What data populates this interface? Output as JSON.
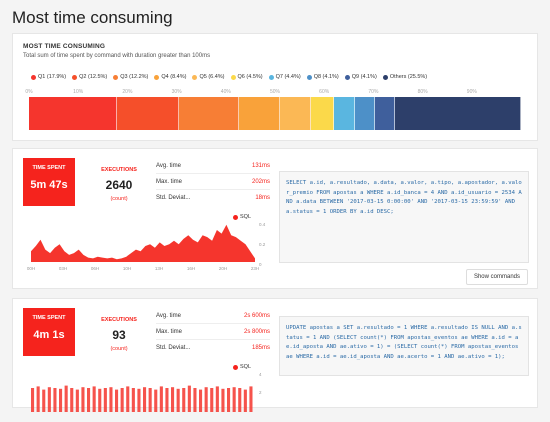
{
  "page": {
    "title": "Most time consuming"
  },
  "summary": {
    "heading": "MOST TIME CONSUMING",
    "subtitle": "Total sum of time spent by command with duration greater than 100ms",
    "legend": [
      {
        "label": "Q1 (17.9%)",
        "color": "#f5352d"
      },
      {
        "label": "Q2 (12.5%)",
        "color": "#f54f2a"
      },
      {
        "label": "Q3 (12.2%)",
        "color": "#f77e35"
      },
      {
        "label": "Q4 (8.4%)",
        "color": "#f9a23a"
      },
      {
        "label": "Q5 (6.4%)",
        "color": "#fbb855"
      },
      {
        "label": "Q6 (4.5%)",
        "color": "#fbd94a"
      },
      {
        "label": "Q7 (4.4%)",
        "color": "#5ab6e0"
      },
      {
        "label": "Q8 (4.1%)",
        "color": "#4d90c8"
      },
      {
        "label": "Q9 (4.1%)",
        "color": "#3f5f9c"
      },
      {
        "label": "Others (25.5%)",
        "color": "#2d3f6a"
      }
    ],
    "shares": [
      17.9,
      12.5,
      12.2,
      8.4,
      6.4,
      4.5,
      4.4,
      4.1,
      4.1,
      25.5
    ],
    "axis_ticks": [
      "0%",
      "10%",
      "20%",
      "30%",
      "40%",
      "50%",
      "60%",
      "70%",
      "80%",
      "90%"
    ]
  },
  "queries": [
    {
      "time_spent_label": "TIME SPENT",
      "time_spent": "5m 47s",
      "executions_label": "EXECUTIONS",
      "executions": "2640",
      "executions_unit": "(count)",
      "stats": [
        {
          "label": "Avg. time",
          "value": "131ms"
        },
        {
          "label": "Max. time",
          "value": "202ms"
        },
        {
          "label": "Std. Deviat...",
          "value": "18ms"
        }
      ],
      "legend": "SQL",
      "x_ticks": [
        "00H",
        "03H",
        "06H",
        "10H",
        "13H",
        "16H",
        "20H",
        "23H"
      ],
      "y_ticks": [
        "0.4",
        "0.2",
        "0"
      ],
      "sql": "SELECT a.id, a.resultado, a.data, a.valor, a.tipo, a.apostador, a.valor_premio FROM apostas a WHERE a.id_banca = 4 AND a.id_usuario = 2534 AND a.data BETWEEN '2017-03-15 0:00:00' AND '2017-03-15 23:59:59' AND a.status = 1 ORDER BY a.id DESC;",
      "show_button": "Show commands",
      "chart_data": {
        "type": "area",
        "x": [
          0,
          1,
          2,
          3,
          4,
          5,
          6,
          7,
          8,
          9,
          10,
          11,
          12,
          13,
          14,
          15,
          16,
          17,
          18,
          19,
          20,
          21,
          22,
          23,
          24,
          25,
          26,
          27,
          28,
          29,
          30,
          31,
          32,
          33,
          34,
          35,
          36,
          37,
          38,
          39,
          40,
          41,
          42,
          43,
          44,
          45,
          46,
          47
        ],
        "values": [
          0.12,
          0.18,
          0.25,
          0.14,
          0.1,
          0.16,
          0.2,
          0.12,
          0.08,
          0.1,
          0.14,
          0.08,
          0.05,
          0.04,
          0.06,
          0.05,
          0.04,
          0.05,
          0.03,
          0.04,
          0.06,
          0.1,
          0.14,
          0.12,
          0.18,
          0.2,
          0.16,
          0.22,
          0.18,
          0.2,
          0.24,
          0.2,
          0.26,
          0.3,
          0.25,
          0.22,
          0.3,
          0.28,
          0.24,
          0.36,
          0.32,
          0.42,
          0.3,
          0.28,
          0.24,
          0.2,
          0.12,
          0.04
        ],
        "series": [
          {
            "name": "SQL",
            "color": "#f5352d"
          }
        ]
      }
    },
    {
      "time_spent_label": "TIME SPENT",
      "time_spent": "4m 1s",
      "executions_label": "EXECUTIONS",
      "executions": "93",
      "executions_unit": "(count)",
      "stats": [
        {
          "label": "Avg. time",
          "value": "2s 600ms"
        },
        {
          "label": "Max. time",
          "value": "2s 800ms"
        },
        {
          "label": "Std. Deviat...",
          "value": "185ms"
        }
      ],
      "legend": "SQL",
      "y_ticks": [
        "4",
        "2"
      ],
      "sql": "UPDATE apostas a SET a.resultado = 1 WHERE a.resultado IS NULL AND a.status = 1 AND (SELECT count(*) FROM apostas_eventos ae WHERE a.id = ae.id_aposta AND ae.ativo = 1) = (SELECT count(*) FROM apostas_eventos ae WHERE a.id = ae.id_aposta AND ae.acerto = 1 AND ae.ativo = 1);",
      "chart_data": {
        "type": "bar",
        "values": [
          3,
          3.2,
          2.8,
          3.1,
          3,
          2.9,
          3.3,
          3,
          2.8,
          3.1,
          3,
          3.2,
          2.9,
          3,
          3.1,
          2.8,
          3,
          3.2,
          3,
          2.9,
          3.1,
          3,
          2.8,
          3.2,
          3,
          3.1,
          2.9,
          3,
          3.3,
          3,
          2.8,
          3.1,
          3,
          3.2,
          2.9,
          3,
          3.1,
          3,
          2.8,
          3.2
        ],
        "series": [
          {
            "name": "SQL",
            "color": "#f5352d"
          }
        ]
      }
    }
  ]
}
